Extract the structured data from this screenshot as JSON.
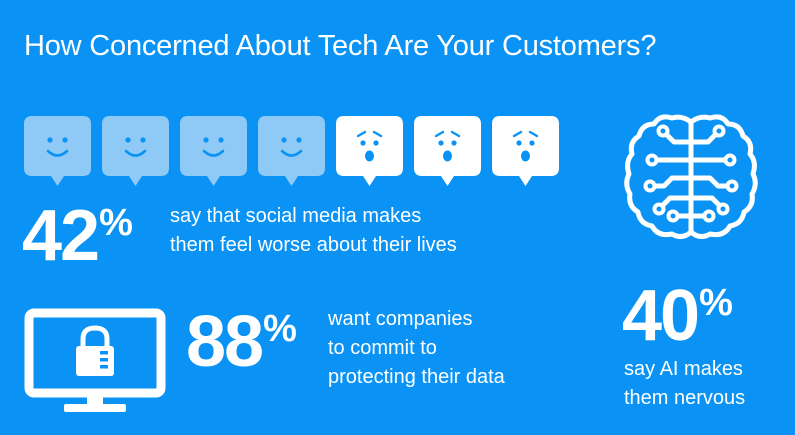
{
  "title": "How Concerned About Tech Are Your Customers?",
  "colors": {
    "background": "#0a93f5",
    "face_happy": "#8fcaf6",
    "face_worried": "#ffffff",
    "icon_fg": "#ffffff"
  },
  "faces": [
    {
      "mood": "happy",
      "icon": "smiley-face-icon"
    },
    {
      "mood": "happy",
      "icon": "smiley-face-icon"
    },
    {
      "mood": "happy",
      "icon": "smiley-face-icon"
    },
    {
      "mood": "happy",
      "icon": "smiley-face-icon"
    },
    {
      "mood": "worried",
      "icon": "worried-face-icon"
    },
    {
      "mood": "worried",
      "icon": "worried-face-icon"
    },
    {
      "mood": "worried",
      "icon": "worried-face-icon"
    }
  ],
  "stats": {
    "social": {
      "value": "42",
      "unit": "%",
      "line1": "say that social media makes",
      "line2": "them feel worse about their lives"
    },
    "data": {
      "value": "88",
      "unit": "%",
      "line1": "want companies",
      "line2": "to commit to",
      "line3": "protecting their data",
      "icon": "monitor-lock-icon"
    },
    "ai": {
      "value": "40",
      "unit": "%",
      "line1": "say AI makes",
      "line2": "them nervous",
      "icon": "brain-circuit-icon"
    }
  }
}
